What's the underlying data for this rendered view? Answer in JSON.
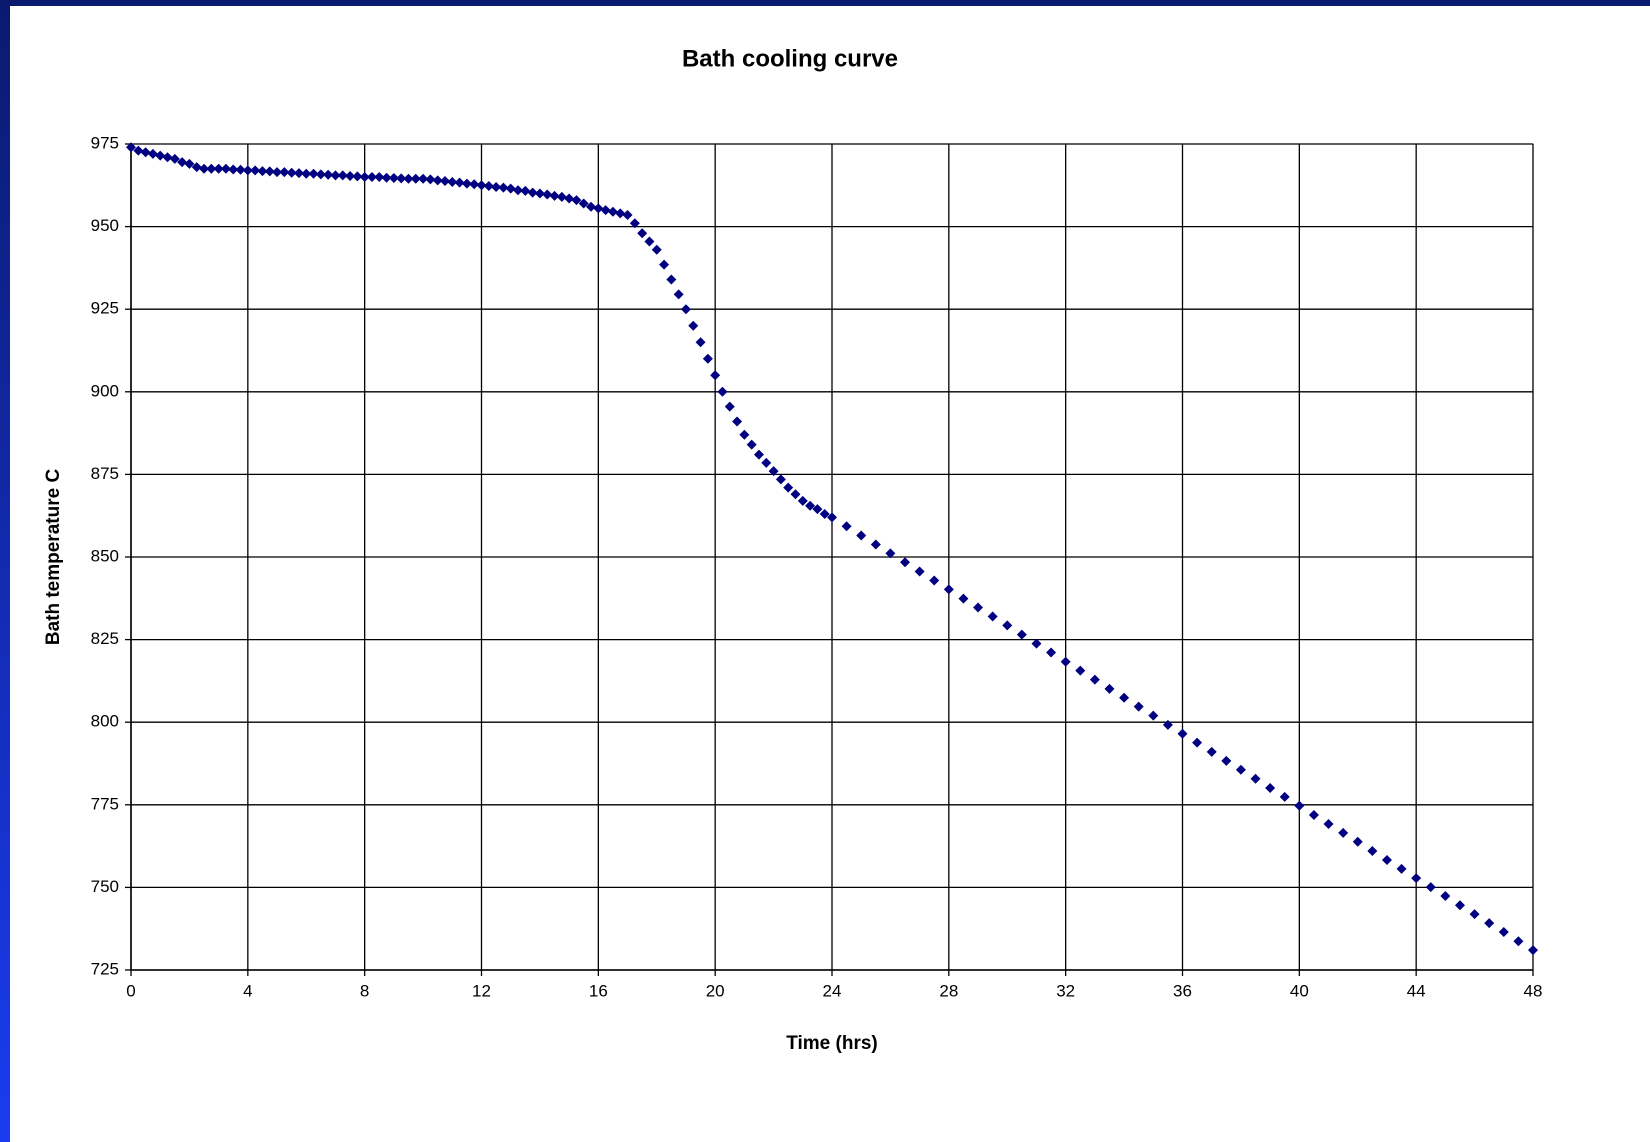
{
  "chart_data": {
    "type": "scatter",
    "title": "Bath cooling curve",
    "x_label": "Time (hrs)",
    "y_label": "Bath temperature C",
    "xlim": [
      0,
      48
    ],
    "ylim": [
      725,
      975
    ],
    "xticks": [
      0,
      4,
      8,
      12,
      16,
      20,
      24,
      28,
      32,
      36,
      40,
      44,
      48
    ],
    "yticks": [
      725,
      750,
      775,
      800,
      825,
      850,
      875,
      900,
      925,
      950,
      975
    ],
    "grid": true,
    "series": [
      {
        "name": "Bath temperature",
        "color": "#000080",
        "x": [
          0,
          0.25,
          0.5,
          0.75,
          1,
          1.25,
          1.5,
          1.75,
          2,
          2.25,
          2.5,
          2.75,
          3,
          3.25,
          3.5,
          3.75,
          4,
          4.25,
          4.5,
          4.75,
          5,
          5.25,
          5.5,
          5.75,
          6,
          6.25,
          6.5,
          6.75,
          7,
          7.25,
          7.5,
          7.75,
          8,
          8.25,
          8.5,
          8.75,
          9,
          9.25,
          9.5,
          9.75,
          10,
          10.25,
          10.5,
          10.75,
          11,
          11.25,
          11.5,
          11.75,
          12,
          12.25,
          12.5,
          12.75,
          13,
          13.25,
          13.5,
          13.75,
          14,
          14.25,
          14.5,
          14.75,
          15,
          15.25,
          15.5,
          15.75,
          16,
          16.25,
          16.5,
          16.75,
          17,
          17.25,
          17.5,
          17.75,
          18,
          18.25,
          18.5,
          18.75,
          19,
          19.25,
          19.5,
          19.75,
          20,
          20.25,
          20.5,
          20.75,
          21,
          21.25,
          21.5,
          21.75,
          22,
          22.25,
          22.5,
          22.75,
          23,
          23.25,
          23.5,
          23.75,
          24,
          24.5,
          25,
          25.5,
          26,
          26.5,
          27,
          27.5,
          28,
          28.5,
          29,
          29.5,
          30,
          30.5,
          31,
          31.5,
          32,
          32.5,
          33,
          33.5,
          34,
          34.5,
          35,
          35.5,
          36,
          36.5,
          37,
          37.5,
          38,
          38.5,
          39,
          39.5,
          40,
          40.5,
          41,
          41.5,
          42,
          42.5,
          43,
          43.5,
          44,
          44.5,
          45,
          45.5,
          46,
          46.5,
          47,
          47.5,
          48
        ],
        "values": [
          974,
          973,
          972.5,
          972,
          971.5,
          971,
          970.5,
          969.5,
          969,
          968,
          967.5,
          967.5,
          967.5,
          967.5,
          967.3,
          967.2,
          967,
          967,
          966.8,
          966.7,
          966.5,
          966.5,
          966.3,
          966.2,
          966,
          966,
          965.8,
          965.7,
          965.5,
          965.5,
          965.3,
          965.2,
          965,
          965,
          965,
          964.8,
          964.7,
          964.6,
          964.5,
          964.5,
          964.5,
          964.3,
          964,
          963.8,
          963.5,
          963.3,
          963,
          962.8,
          962.5,
          962.3,
          962,
          961.8,
          961.5,
          961,
          960.8,
          960.3,
          960,
          959.7,
          959.3,
          959,
          958.5,
          958,
          957,
          956,
          955.5,
          955,
          954.5,
          954,
          953.5,
          951,
          948,
          945.5,
          943,
          938.5,
          934,
          929.5,
          925,
          920,
          915,
          910,
          905,
          900,
          895.5,
          891,
          887,
          884,
          881,
          878.5,
          876,
          873.5,
          871,
          869,
          867,
          865.5,
          864.5,
          863,
          862,
          859.3,
          856.5,
          853.8,
          851.1,
          848.4,
          845.6,
          842.9,
          840.2,
          837.4,
          834.7,
          832,
          829.3,
          826.5,
          823.8,
          821.1,
          818.3,
          815.6,
          812.9,
          810.1,
          807.4,
          804.7,
          802,
          799.2,
          796.5,
          793.8,
          791,
          788.3,
          785.6,
          782.9,
          780.1,
          777.4,
          774.7,
          771.9,
          769.2,
          766.5,
          763.8,
          761,
          758.3,
          755.6,
          752.8,
          750.1,
          747.4,
          744.6,
          741.9,
          739.2,
          736.5,
          733.7,
          731
        ]
      }
    ]
  }
}
